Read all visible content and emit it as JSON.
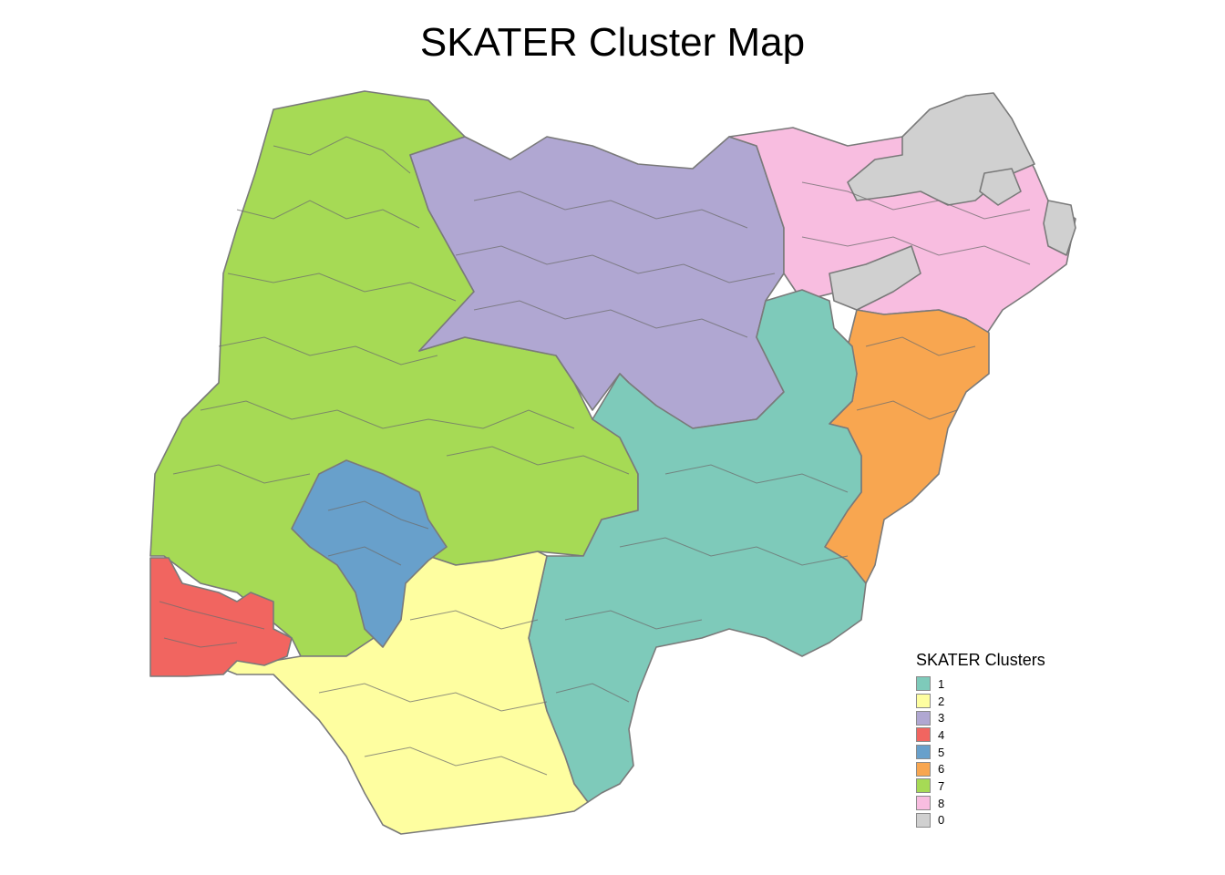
{
  "title": "SKATER Cluster Map",
  "legend": {
    "title": "SKATER Clusters",
    "placement": "bottom-right",
    "items": [
      {
        "label": "1",
        "color": "#7ECABA"
      },
      {
        "label": "2",
        "color": "#FEFEA0"
      },
      {
        "label": "3",
        "color": "#B0A7D2"
      },
      {
        "label": "4",
        "color": "#F16560"
      },
      {
        "label": "5",
        "color": "#68A0CB"
      },
      {
        "label": "6",
        "color": "#F8A650"
      },
      {
        "label": "7",
        "color": "#A6DA55"
      },
      {
        "label": "8",
        "color": "#F8BDE0"
      },
      {
        "label": "0",
        "color": "#D0D0D0"
      }
    ]
  },
  "colors": {
    "border": "#7a7a7a",
    "background": "#ffffff"
  }
}
